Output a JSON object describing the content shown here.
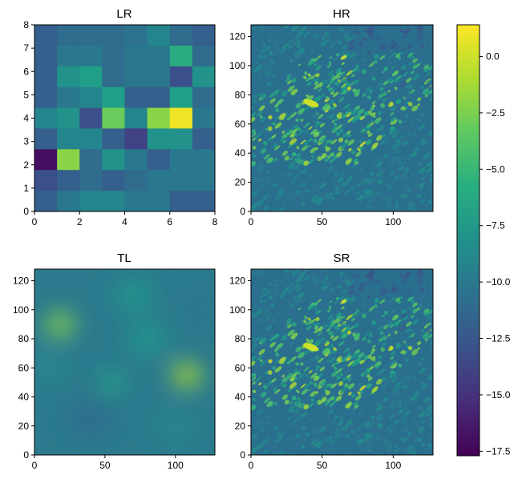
{
  "chart_data": [
    {
      "type": "heatmap",
      "title": "LR",
      "xlim": [
        0,
        8
      ],
      "ylim": [
        0,
        8
      ],
      "xticks": [
        "0",
        "2",
        "4",
        "6",
        "8"
      ],
      "yticks": [
        "0",
        "1",
        "2",
        "3",
        "4",
        "5",
        "6",
        "7",
        "8"
      ],
      "grid": false,
      "values": [
        [
          -12,
          -11,
          -11,
          -11,
          -10.5,
          -9,
          -11,
          -12
        ],
        [
          -12,
          -10,
          -10,
          -11,
          -10,
          -10,
          -6,
          -11
        ],
        [
          -12,
          -8,
          -7,
          -11,
          -10,
          -10,
          -13,
          -8
        ],
        [
          -12,
          -10,
          -9,
          -7,
          -12,
          -12,
          -7,
          -11
        ],
        [
          -9,
          -8,
          -13,
          -3,
          -9,
          -2,
          1,
          -10
        ],
        [
          -12,
          -9,
          -9,
          -12,
          -14,
          -8,
          -8,
          -12
        ],
        [
          -17,
          -2,
          -11,
          -8,
          -10,
          -12,
          -10,
          -10
        ],
        [
          -13,
          -12,
          -11,
          -12,
          -11,
          -10,
          -10,
          -10
        ],
        [
          -12,
          -10,
          -9,
          -9,
          -10,
          -10,
          -12,
          -12
        ]
      ]
    },
    {
      "type": "heatmap",
      "title": "HR",
      "xlim": [
        0,
        128
      ],
      "ylim": [
        0,
        128
      ],
      "xticks": [
        "0",
        "50",
        "100"
      ],
      "yticks": [
        "0",
        "20",
        "40",
        "60",
        "80",
        "100",
        "120"
      ],
      "grid": false
    },
    {
      "type": "heatmap",
      "title": "TL",
      "xlim": [
        0,
        128
      ],
      "ylim": [
        0,
        128
      ],
      "xticks": [
        "0",
        "50",
        "100"
      ],
      "yticks": [
        "0",
        "20",
        "40",
        "60",
        "80",
        "100",
        "120"
      ],
      "grid": false,
      "hotspots": [
        {
          "x": 18,
          "y": 90,
          "value": -2
        },
        {
          "x": 108,
          "y": 55,
          "value": -1
        },
        {
          "x": 55,
          "y": 50,
          "value": -7
        }
      ]
    },
    {
      "type": "heatmap",
      "title": "SR",
      "xlim": [
        0,
        128
      ],
      "ylim": [
        0,
        128
      ],
      "xticks": [
        "0",
        "50",
        "100"
      ],
      "yticks": [
        "0",
        "20",
        "40",
        "60",
        "80",
        "100",
        "120"
      ],
      "grid": false
    }
  ],
  "colorbar": {
    "colormap": "viridis",
    "vmin": -17.7,
    "vmax": 1.4,
    "ticks": [
      0.0,
      -2.5,
      -5.0,
      -7.5,
      -10.0,
      -12.5,
      -15.0,
      -17.5
    ],
    "tick_labels": [
      "0.0",
      "−2.5",
      "−5.0",
      "−7.5",
      "−10.0",
      "−12.5",
      "−15.0",
      "−17.5"
    ]
  },
  "colors": {
    "viridis_dark": "#440154",
    "viridis_mid": "#21918c",
    "viridis_light": "#fde725"
  }
}
